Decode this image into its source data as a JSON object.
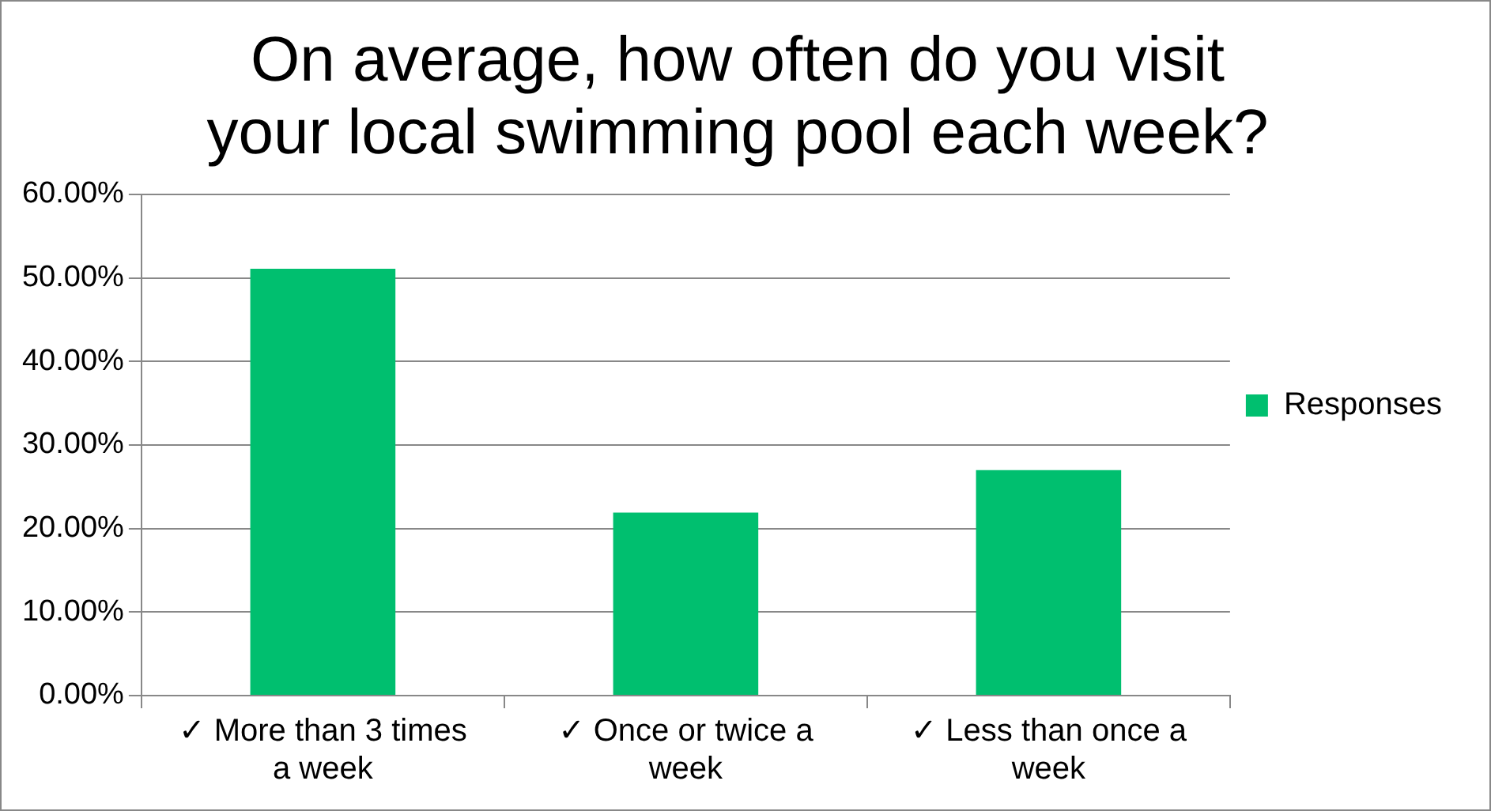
{
  "chart_data": {
    "type": "bar",
    "title": "On average, how often do you visit your local swimming pool each week?",
    "categories": [
      "✓ More than 3 times a week",
      "✓ Once or twice a week",
      "✓ Less than once a week"
    ],
    "series": [
      {
        "name": "Responses",
        "color": "#00bf6f",
        "values": [
          51.1,
          21.9,
          27.0
        ]
      }
    ],
    "ylim": [
      0,
      60
    ],
    "yticks": [
      {
        "value": 0,
        "label": "0.00%"
      },
      {
        "value": 10,
        "label": "10.00%"
      },
      {
        "value": 20,
        "label": "20.00%"
      },
      {
        "value": 30,
        "label": "30.00%"
      },
      {
        "value": 40,
        "label": "40.00%"
      },
      {
        "value": 50,
        "label": "50.00%"
      },
      {
        "value": 60,
        "label": "60.00%"
      }
    ],
    "grid": "y",
    "legend": "right"
  }
}
